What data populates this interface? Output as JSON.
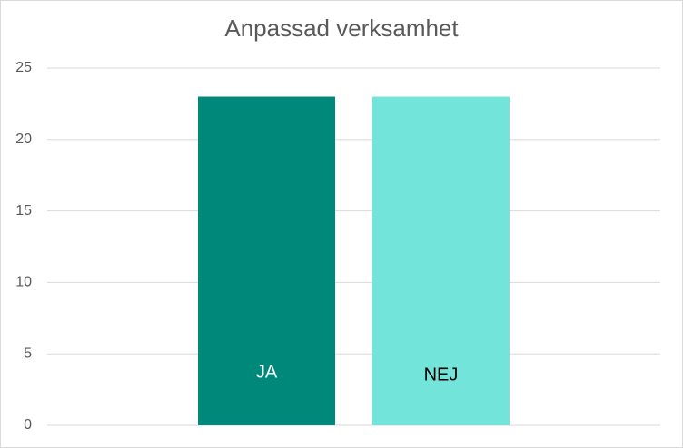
{
  "chart_data": {
    "type": "bar",
    "title": "Anpassad verksamhet",
    "categories": [
      null
    ],
    "series": [
      {
        "name": "JA",
        "color": "#00897b",
        "values": [
          23
        ]
      },
      {
        "name": "NEJ",
        "color": "#73e4da",
        "values": [
          23
        ]
      }
    ],
    "ylim": [
      0,
      25
    ],
    "yticks": [
      0,
      5,
      10,
      15,
      20,
      25
    ],
    "grid": true
  }
}
